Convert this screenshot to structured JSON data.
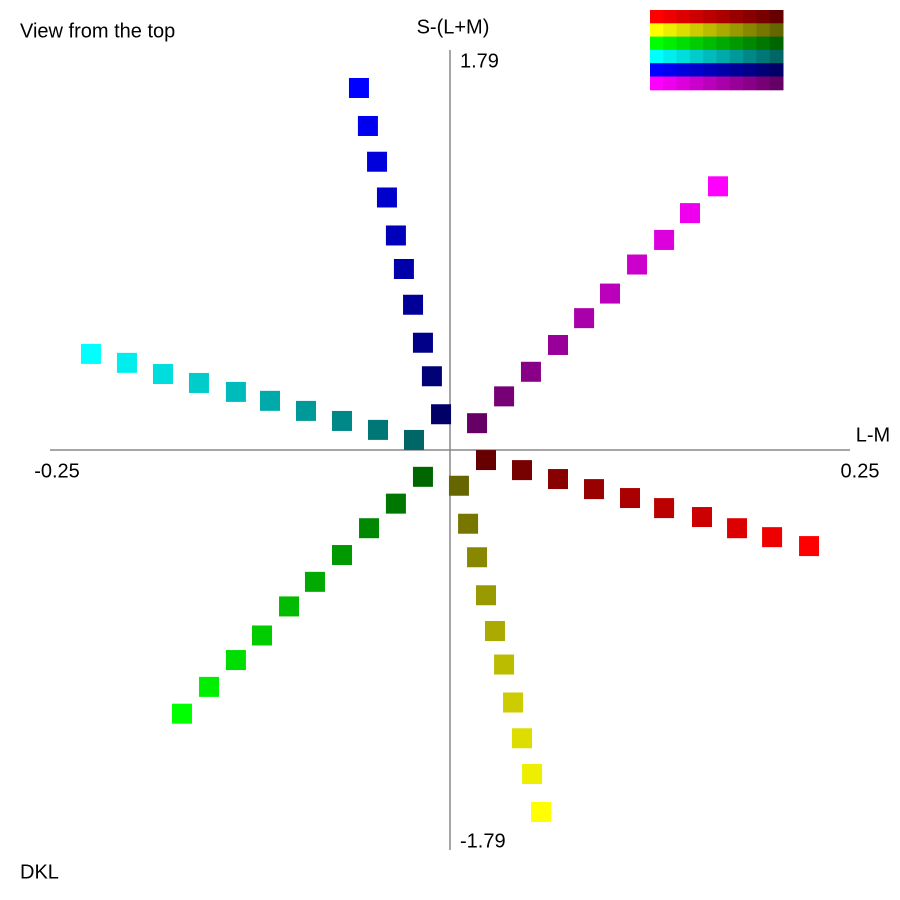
{
  "chart_data": {
    "type": "scatter",
    "title": "View from the top",
    "subtitle": "DKL",
    "xlabel": "L-M",
    "ylabel": "S-(L+M)",
    "xlim": [
      -0.25,
      0.25
    ],
    "xticks": [
      -0.25,
      0.25
    ],
    "ylim": [
      -1.79,
      1.79
    ],
    "yticks": [
      -1.79,
      1.79
    ],
    "series": [
      {
        "colors": [
          "#660000",
          "#770000",
          "#880000",
          "#990000",
          "#aa0000",
          "#bb0000",
          "#cc0000",
          "#dd0000",
          "#ee0000",
          "#ff0000"
        ],
        "x": [
          0.0225,
          0.045,
          0.0675,
          0.09,
          0.1125,
          0.1338,
          0.1575,
          0.1794,
          0.2013,
          0.2244
        ],
        "values": [
          -0.045,
          -0.09,
          -0.13,
          -0.175,
          -0.215,
          -0.26,
          -0.3,
          -0.35,
          -0.39,
          -0.43
        ]
      },
      {
        "colors": [
          "#666600",
          "#777700",
          "#888800",
          "#999900",
          "#aaaa00",
          "#bbbb00",
          "#cccc00",
          "#dddd00",
          "#eeee00",
          "#ffff00"
        ],
        "x": [
          0.0056,
          0.0113,
          0.0169,
          0.0225,
          0.0281,
          0.0338,
          0.0394,
          0.045,
          0.0513,
          0.0569
        ],
        "values": [
          -0.16,
          -0.33,
          -0.48,
          -0.65,
          -0.81,
          -0.96,
          -1.13,
          -1.29,
          -1.45,
          -1.62
        ]
      },
      {
        "colors": [
          "#006600",
          "#007700",
          "#008800",
          "#009900",
          "#00aa00",
          "#00bb00",
          "#00cc00",
          "#00dd00",
          "#00ee00",
          "#00ff00"
        ],
        "x": [
          -0.0169,
          -0.0338,
          -0.0506,
          -0.0675,
          -0.0844,
          -0.1006,
          -0.1175,
          -0.1338,
          -0.1506,
          -0.1675
        ],
        "values": [
          -0.12,
          -0.24,
          -0.35,
          -0.47,
          -0.59,
          -0.7,
          -0.83,
          -0.94,
          -1.06,
          -1.18
        ]
      },
      {
        "colors": [
          "#006666",
          "#007777",
          "#008888",
          "#009999",
          "#00aaaa",
          "#00bbbb",
          "#00cccc",
          "#00dddd",
          "#00eeee",
          "#00ffff"
        ],
        "x": [
          -0.0225,
          -0.045,
          -0.0675,
          -0.09,
          -0.1125,
          -0.1338,
          -0.1569,
          -0.1794,
          -0.2019,
          -0.2244
        ],
        "values": [
          0.045,
          0.09,
          0.13,
          0.175,
          0.22,
          0.26,
          0.3,
          0.34,
          0.39,
          0.43
        ]
      },
      {
        "colors": [
          "#000066",
          "#000077",
          "#000088",
          "#000099",
          "#0000aa",
          "#0000bb",
          "#0000cc",
          "#0000dd",
          "#0000ee",
          "#0000ff"
        ],
        "x": [
          -0.0056,
          -0.0113,
          -0.0169,
          -0.0231,
          -0.0288,
          -0.0338,
          -0.0394,
          -0.0456,
          -0.0513,
          -0.0569
        ],
        "values": [
          0.16,
          0.33,
          0.48,
          0.65,
          0.81,
          0.96,
          1.13,
          1.29,
          1.45,
          1.62
        ]
      },
      {
        "colors": [
          "#660066",
          "#770077",
          "#880088",
          "#990099",
          "#aa00aa",
          "#bb00bb",
          "#cc00cc",
          "#dd00dd",
          "#ee00ee",
          "#ff00ff"
        ],
        "x": [
          0.0169,
          0.0338,
          0.0506,
          0.0675,
          0.0838,
          0.1,
          0.1169,
          0.1338,
          0.15,
          0.1675
        ],
        "values": [
          0.12,
          0.24,
          0.35,
          0.47,
          0.59,
          0.7,
          0.83,
          0.94,
          1.06,
          1.18
        ]
      }
    ]
  }
}
